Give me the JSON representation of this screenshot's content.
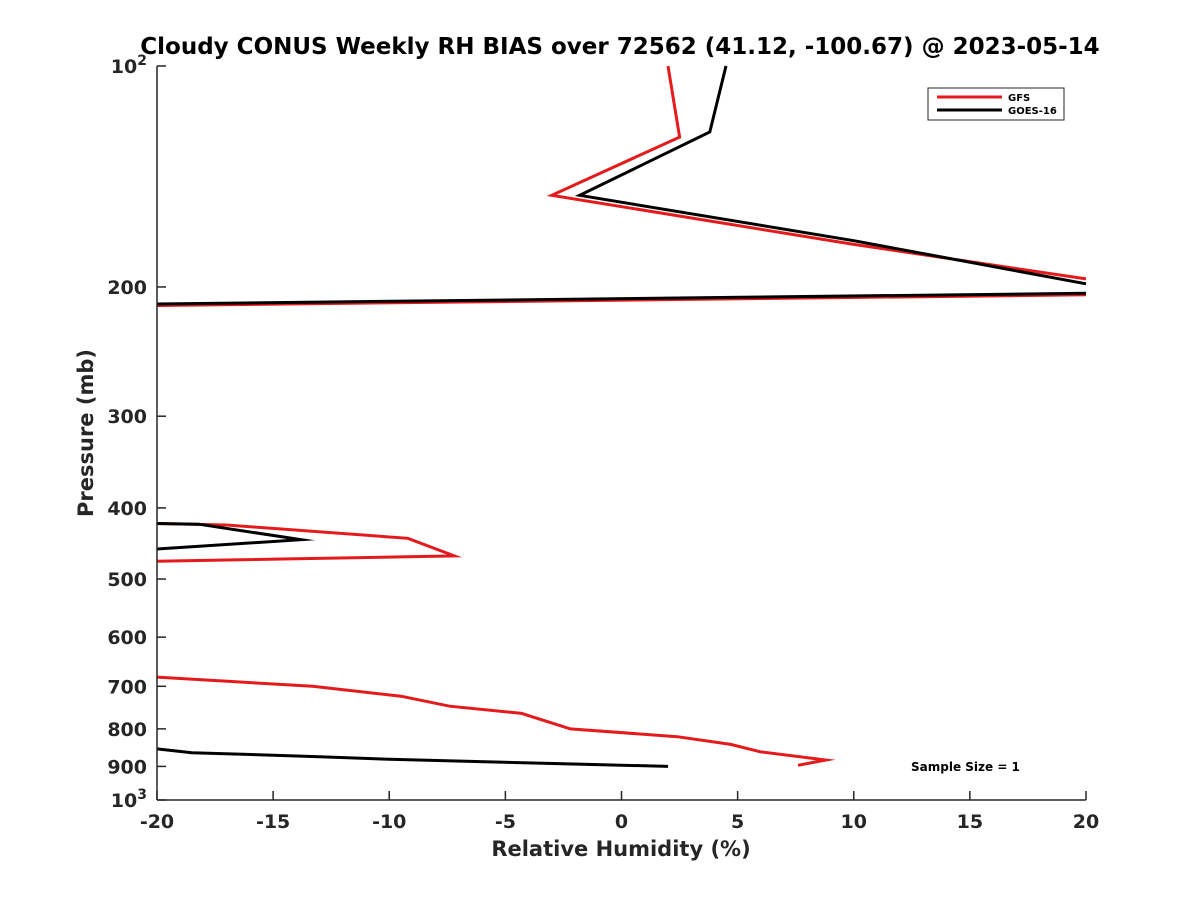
{
  "chart_data": {
    "type": "line",
    "title": "Cloudy CONUS Weekly RH BIAS over 72562 (41.12, -100.67) @ 2023-05-14",
    "xlabel": "Relative Humidity (%)",
    "ylabel": "Pressure (mb)",
    "xlim": [
      -20,
      20
    ],
    "ylim": [
      100,
      1000
    ],
    "y_scale": "log",
    "y_reversed": true,
    "grid": false,
    "legend_position": "top-right",
    "x_ticks": [
      -20,
      -15,
      -10,
      -5,
      0,
      5,
      10,
      15,
      20
    ],
    "x_tick_labels": [
      "-20",
      "-15",
      "-10",
      "-5",
      "0",
      "5",
      "10",
      "15",
      "20"
    ],
    "y_ticks": [
      100,
      200,
      300,
      400,
      500,
      600,
      700,
      800,
      900,
      1000
    ],
    "y_tick_labels": [
      {
        "base": "10",
        "exp": "2"
      },
      {
        "base": "200",
        "exp": ""
      },
      {
        "base": "300",
        "exp": ""
      },
      {
        "base": "400",
        "exp": ""
      },
      {
        "base": "500",
        "exp": ""
      },
      {
        "base": "600",
        "exp": ""
      },
      {
        "base": "700",
        "exp": ""
      },
      {
        "base": "800",
        "exp": ""
      },
      {
        "base": "900",
        "exp": ""
      },
      {
        "base": "10",
        "exp": "3"
      }
    ],
    "series": [
      {
        "name": "GFS",
        "color": "#e41a1c",
        "segments": [
          [
            [
              2.0,
              100
            ],
            [
              2.5,
              125
            ],
            [
              -3.0,
              150
            ],
            [
              10.0,
              175
            ],
            [
              20.0,
              195
            ]
          ],
          [
            [
              20.0,
              205
            ],
            [
              -20.0,
              212
            ]
          ],
          [
            [
              -20.0,
              420
            ],
            [
              -17.0,
              422
            ],
            [
              -9.2,
              440
            ],
            [
              -7.2,
              465
            ],
            [
              -20.0,
              473
            ]
          ],
          [
            [
              -20.0,
              680
            ],
            [
              -13.3,
              700
            ],
            [
              -9.5,
              722
            ],
            [
              -7.4,
              745
            ],
            [
              -4.3,
              762
            ],
            [
              -2.2,
              800
            ],
            [
              2.4,
              820
            ],
            [
              4.7,
              840
            ],
            [
              6.0,
              860
            ],
            [
              8.8,
              882
            ],
            [
              7.6,
              897
            ]
          ]
        ]
      },
      {
        "name": "GOES-16",
        "color": "#000000",
        "segments": [
          [
            [
              4.5,
              100
            ],
            [
              3.8,
              123
            ],
            [
              -1.8,
              150
            ],
            [
              10.0,
              173
            ],
            [
              20.0,
              198
            ]
          ],
          [
            [
              20.0,
              204
            ],
            [
              -20.0,
              211
            ]
          ],
          [
            [
              -20.0,
              420
            ],
            [
              -18.2,
              421
            ],
            [
              -13.8,
              442
            ],
            [
              -20.0,
              455
            ]
          ],
          [
            [
              -20.0,
              852
            ],
            [
              -18.5,
              862
            ],
            [
              -13.0,
              873
            ],
            [
              -10.0,
              880
            ],
            [
              2.0,
              900
            ]
          ]
        ]
      }
    ],
    "annotation": "Sample Size = 1"
  }
}
